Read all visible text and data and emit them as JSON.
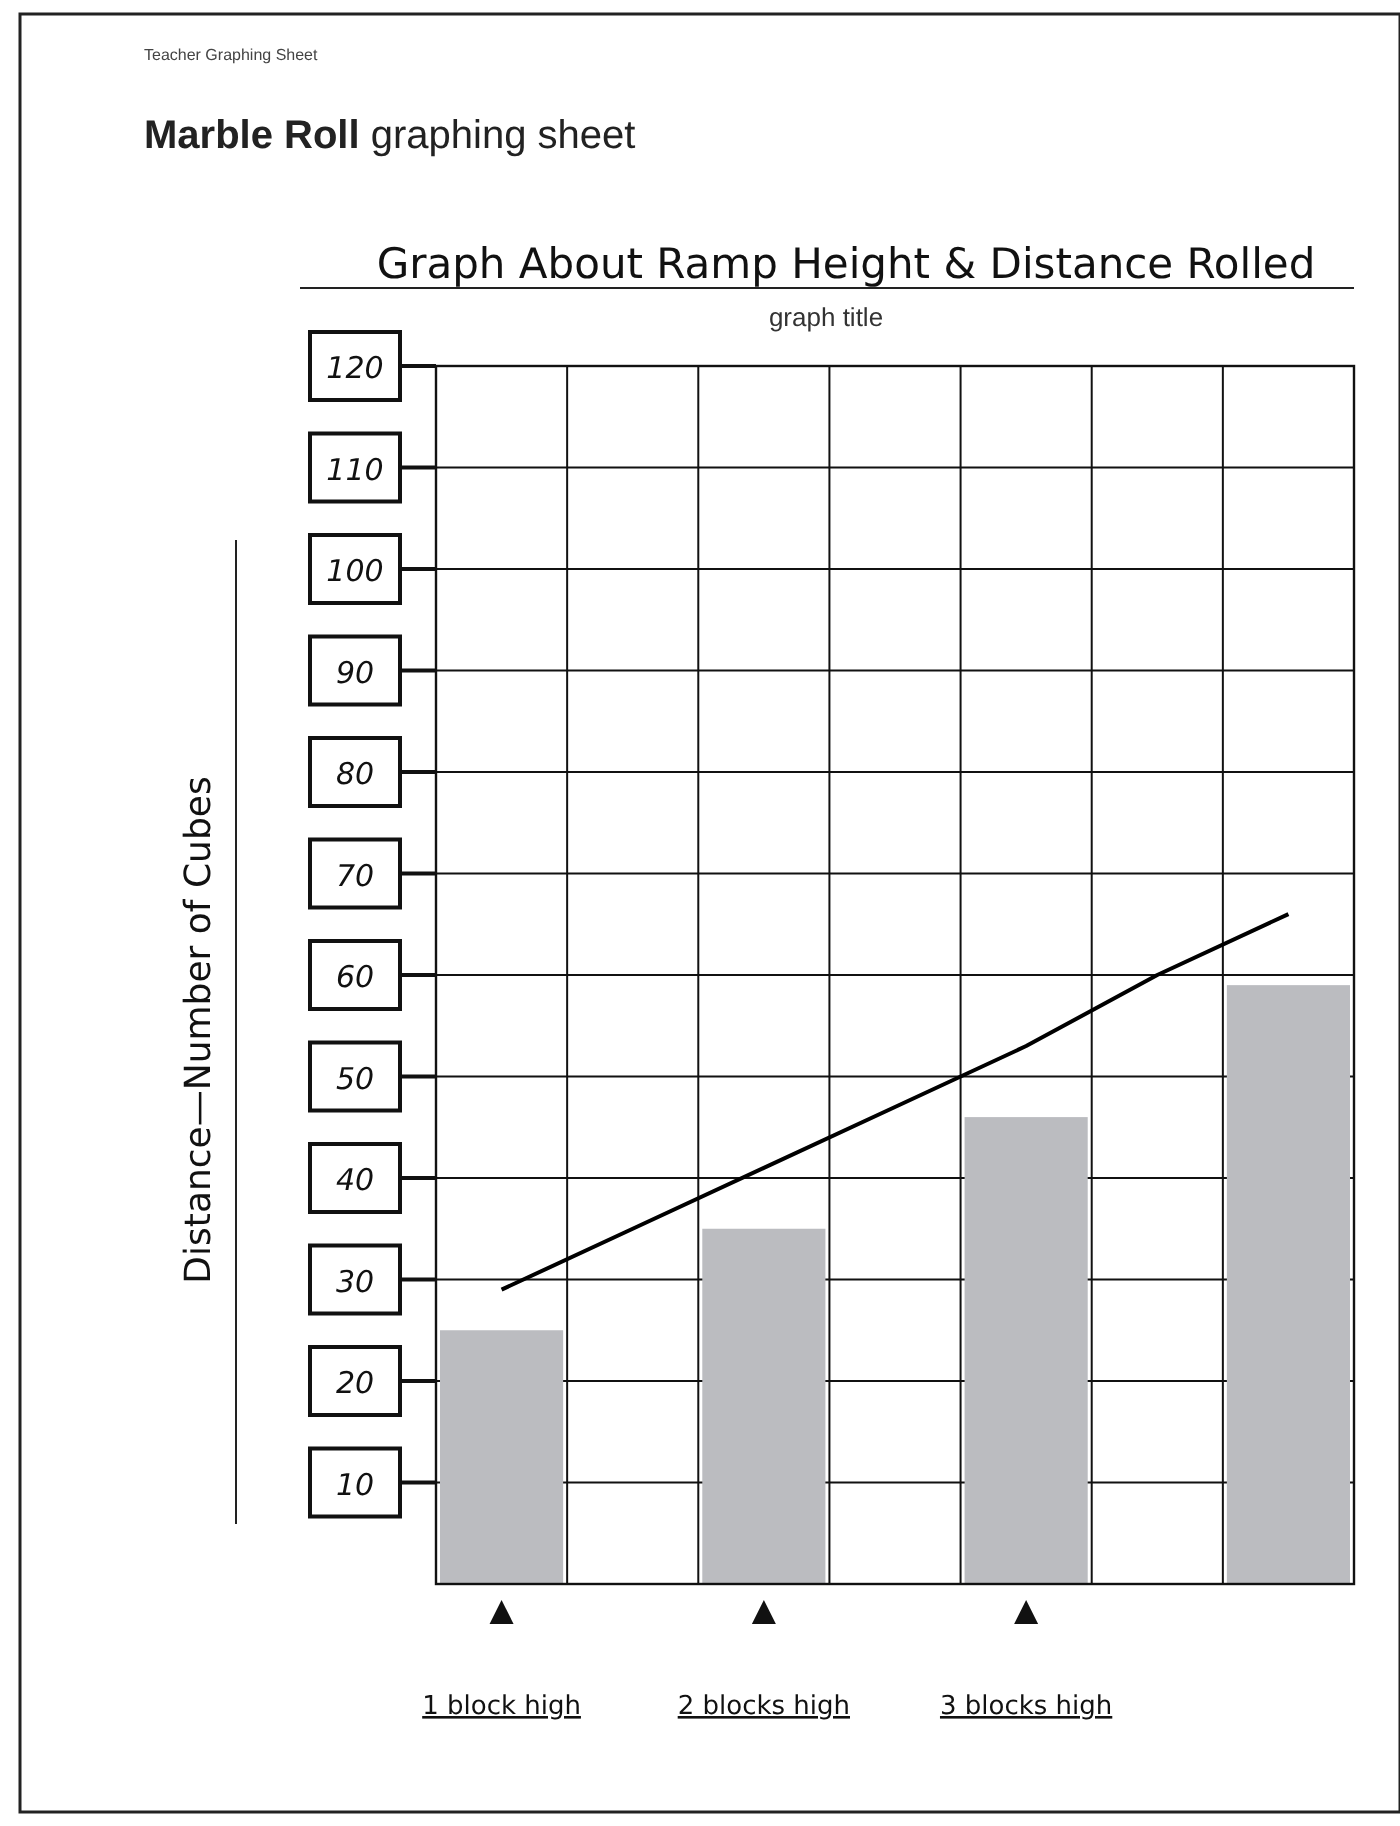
{
  "chart_data": {
    "type": "bar",
    "title": "Marble Roll graphing sheet",
    "subtitle": "Graph About Ramp Height & Distance Rolled",
    "ylabel": "Distance—Number of Cubes",
    "annotations": [
      "Teacher Graphing Sheet",
      "graph title"
    ],
    "categories": [
      "1 block high",
      null,
      "2 blocks high",
      null,
      "3 blocks high",
      null,
      null
    ],
    "series": [
      {
        "color": "#bbbcc0",
        "values": [
          25,
          null,
          35,
          null,
          46,
          null,
          59
        ]
      },
      {
        "type": "line",
        "color": "#000000",
        "values": [
          29,
          35,
          41,
          47,
          53,
          60,
          66
        ]
      }
    ],
    "ylim": [
      0,
      120
    ],
    "yticks": [
      10,
      20,
      30,
      40,
      50,
      60,
      70,
      80,
      90,
      100,
      110,
      120
    ],
    "grid": true,
    "marker": "none",
    "line_style": "solid"
  }
}
